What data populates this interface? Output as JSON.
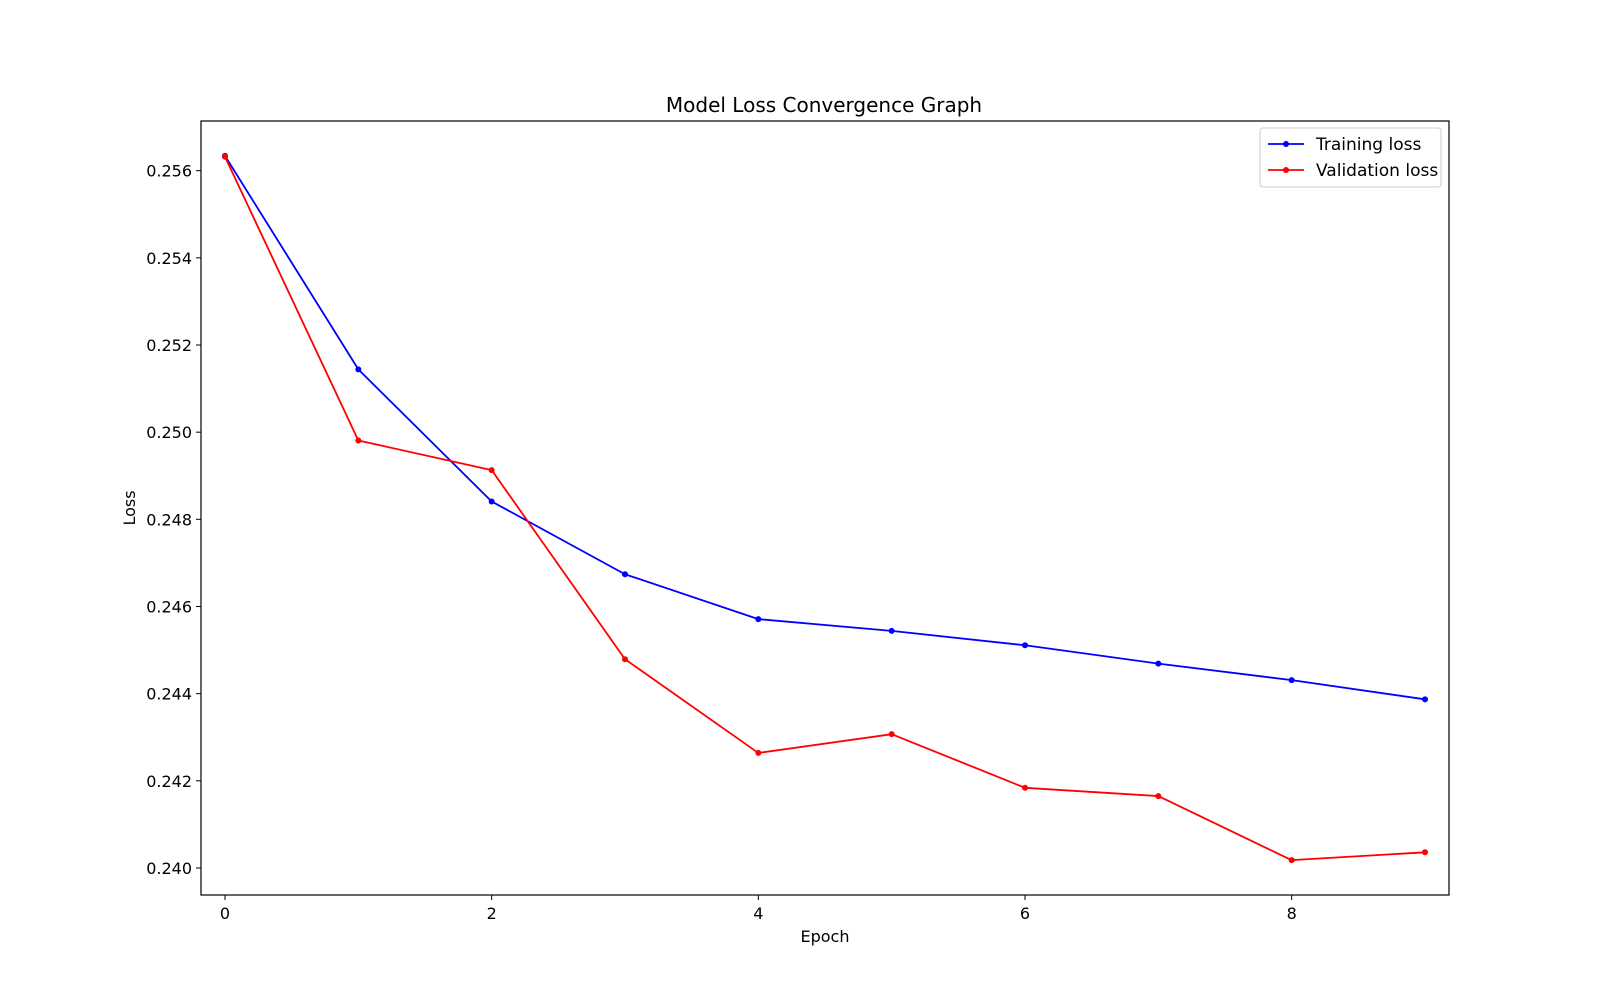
{
  "chart_data": {
    "type": "line",
    "title": "Model Loss Convergence Graph",
    "xlabel": "Epoch",
    "ylabel": "Loss",
    "x": [
      0,
      1,
      2,
      3,
      4,
      5,
      6,
      7,
      8,
      9
    ],
    "xlim": [
      -0.18,
      9.18
    ],
    "ylim": [
      0.23938,
      0.25714
    ],
    "xticks": [
      0,
      2,
      4,
      6,
      8
    ],
    "yticks": [
      0.24,
      0.242,
      0.244,
      0.246,
      0.248,
      0.25,
      0.252,
      0.254,
      0.256
    ],
    "xtick_labels": [
      "0",
      "2",
      "4",
      "6",
      "8"
    ],
    "ytick_labels": [
      "0.240",
      "0.242",
      "0.244",
      "0.246",
      "0.248",
      "0.250",
      "0.252",
      "0.254",
      "0.256"
    ],
    "grid": false,
    "legend_position": "top-right",
    "series": [
      {
        "name": "Training loss",
        "color": "#0000ff",
        "marker": "circle",
        "values": [
          0.25634,
          0.25144,
          0.24841,
          0.24674,
          0.24571,
          0.24544,
          0.24511,
          0.24469,
          0.24431,
          0.24387
        ]
      },
      {
        "name": "Validation loss",
        "color": "#ff0000",
        "marker": "circle",
        "values": [
          0.25632,
          0.24981,
          0.24913,
          0.24479,
          0.24264,
          0.24307,
          0.24184,
          0.24165,
          0.24018,
          0.24036
        ]
      }
    ]
  }
}
